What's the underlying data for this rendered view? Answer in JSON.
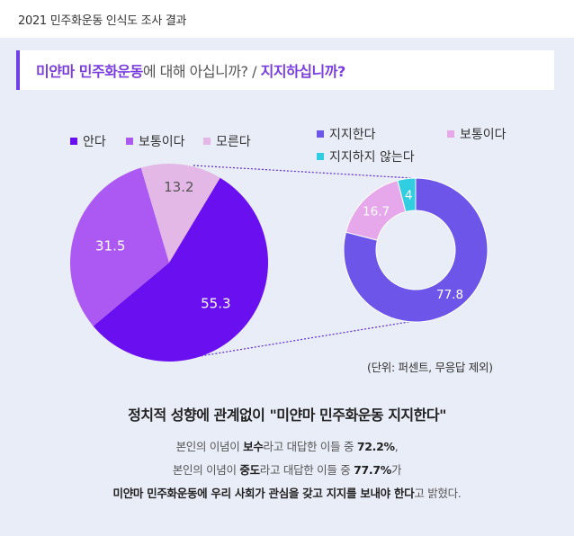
{
  "header": {
    "survey_title": "2021 민주화운동 인식도 조사 결과"
  },
  "question": {
    "part1": "미얀마 민주화운동",
    "part2": "에 대해 아십니까? / ",
    "part3": "지지하십니까?"
  },
  "chart_data": [
    {
      "type": "pie",
      "categories": [
        "안다",
        "보통이다",
        "모른다"
      ],
      "values": [
        55.3,
        31.5,
        13.2
      ],
      "colors": [
        "#6a0ff0",
        "#ac58f2",
        "#e3b7e6"
      ],
      "legend_position": "top-left"
    },
    {
      "type": "pie",
      "style": "donut",
      "categories": [
        "지지한다",
        "보통이다",
        "지지하지 않는다"
      ],
      "values": [
        77.8,
        16.7,
        4
      ],
      "colors": [
        "#6d55e9",
        "#e6a8ea",
        "#31cde0"
      ],
      "legend_position": "top-right"
    }
  ],
  "unit_note": "(단위: 퍼센트, 무응답 제외)",
  "summary": {
    "headline": "정치적 성향에 관계없이 \"미얀마 민주화운동 지지한다\"",
    "line1": {
      "a": "본인의 이념이 ",
      "b": "보수",
      "c": "라고 대답한 이들 중 ",
      "d": "72.2%",
      "e": ","
    },
    "line2": {
      "a": "본인의 이념이 ",
      "b": "중도",
      "c": "라고 대답한 이들 중 ",
      "d": "77.7%",
      "e": "가"
    },
    "line3": {
      "a": "미얀마 민주화운동에 우리 사회가 관심을 갖고 지지를 보내야 한다",
      "b": "고 밝혔다."
    }
  }
}
